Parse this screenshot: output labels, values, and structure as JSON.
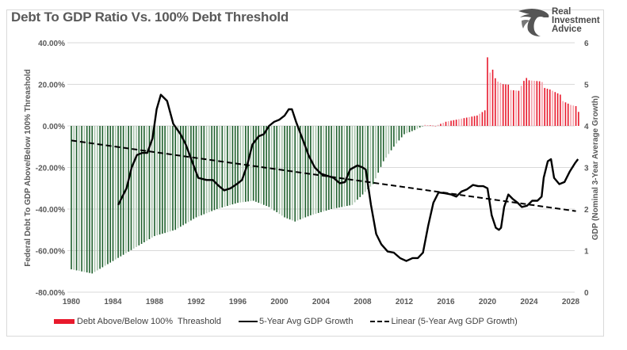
{
  "header": {
    "title": "Debt To GDP Ratio Vs. 100% Debt Threshold",
    "logo_lines": [
      "Real",
      "Investment",
      "Advice"
    ]
  },
  "colors": {
    "above": "#e8192c",
    "above_light": "#f4a1aa",
    "below": "#1e5f2c",
    "below_light": "#a9c4ad",
    "line": "#000000",
    "grid": "#d9d9d9",
    "text": "#595959"
  },
  "chart_data": {
    "type": "bar+line",
    "title": "Debt To GDP Ratio Vs. 100% Debt Threshold",
    "xlabel": "",
    "ylabel": "Federal Debt To GDP Above/Below 100% Threashold",
    "y2label": "GDP (Nominal 3-Year Average Growth)",
    "xlim": [
      1980,
      2028
    ],
    "x_ticks": [
      "1980",
      "1984",
      "1988",
      "1992",
      "1996",
      "2000",
      "2004",
      "2008",
      "2012",
      "2016",
      "2020",
      "2024",
      "2028"
    ],
    "ylim": [
      -80,
      40
    ],
    "y_ticks": [
      "40.00%",
      "20.00%",
      "0.00%",
      "-20.00%",
      "-40.00%",
      "-60.00%",
      "-80.00%"
    ],
    "y2lim": [
      0,
      6
    ],
    "y2_ticks": [
      "6",
      "5",
      "4",
      "3",
      "2",
      "1",
      "0"
    ],
    "grid": true,
    "legend_position": "bottom",
    "legend": [
      {
        "name": "Debt Above/Below 100%  Threashold",
        "style": "bar"
      },
      {
        "name": "5-Year Avg GDP Growth",
        "style": "solid"
      },
      {
        "name": "Linear (5-Year Avg GDP Growth)",
        "style": "dashed"
      }
    ],
    "bars": {
      "name": "Debt Above/Below 100%  Threashold",
      "axis": "left",
      "frequency": "quarterly",
      "anchors_year": [
        1980,
        1981,
        1982,
        1983,
        1984,
        1986,
        1988,
        1990,
        1992,
        1994,
        1996,
        1997.5,
        1999,
        2000.5,
        2001.5,
        2003,
        2005,
        2007,
        2008,
        2009,
        2010,
        2011,
        2012,
        2013,
        2014,
        2015,
        2016,
        2017,
        2018,
        2019,
        2019.9,
        2020.0,
        2020.25,
        2020.5,
        2021,
        2021.5,
        2022,
        2022.5,
        2023,
        2023.5,
        2024,
        2025,
        2026,
        2027,
        2028,
        2028.75
      ],
      "anchors_value": [
        -69,
        -70,
        -71,
        -68,
        -65,
        -59,
        -53,
        -50,
        -44,
        -40,
        -37,
        -36,
        -39,
        -44,
        -46,
        -43,
        -40,
        -38,
        -33,
        -28,
        -17,
        -10,
        -4,
        -2,
        0.5,
        0,
        2,
        3,
        4,
        5,
        8,
        33,
        25,
        26,
        22,
        20,
        19,
        18,
        17,
        21,
        23,
        21,
        18,
        14,
        10,
        8
      ]
    },
    "series": [
      {
        "name": "5-Year Avg GDP Growth",
        "axis": "right",
        "x": [
          1984.5,
          1985.3,
          1985.8,
          1986.3,
          1986.8,
          1987.3,
          1987.8,
          1988.2,
          1988.6,
          1989.2,
          1989.8,
          1990.5,
          1991.0,
          1991.6,
          1992.2,
          1993.0,
          1993.6,
          1994.2,
          1994.7,
          1995.3,
          1995.9,
          1996.4,
          1996.9,
          1997.4,
          1998.0,
          1998.5,
          1999.0,
          1999.5,
          2000.0,
          2000.5,
          2000.9,
          2001.2,
          2001.6,
          2002.2,
          2002.8,
          2003.4,
          2004.0,
          2004.6,
          2005.2,
          2005.8,
          2006.3,
          2006.8,
          2007.5,
          2008.0,
          2008.3,
          2008.8,
          2009.3,
          2009.8,
          2010.4,
          2011.0,
          2011.6,
          2012.2,
          2012.8,
          2013.3,
          2013.8,
          2014.3,
          2014.8,
          2015.3,
          2015.9,
          2016.5,
          2017.0,
          2017.5,
          2018.0,
          2018.6,
          2019.1,
          2019.6,
          2020.0,
          2020.4,
          2020.8,
          2021.1,
          2021.3,
          2021.6,
          2022.0,
          2022.4,
          2022.9,
          2023.3,
          2023.8,
          2024.3,
          2024.8,
          2025.2,
          2025.4,
          2025.8,
          2026.1,
          2026.4,
          2026.9,
          2027.4,
          2027.9,
          2028.4,
          2028.7
        ],
        "y": [
          2.1,
          2.5,
          3.0,
          3.3,
          3.35,
          3.35,
          3.7,
          4.4,
          4.75,
          4.6,
          4.05,
          3.8,
          3.55,
          3.15,
          2.75,
          2.7,
          2.7,
          2.55,
          2.45,
          2.5,
          2.6,
          2.7,
          3.05,
          3.55,
          3.75,
          3.8,
          4.0,
          4.1,
          4.15,
          4.25,
          4.4,
          4.4,
          4.1,
          3.7,
          3.3,
          3.0,
          2.85,
          2.8,
          2.75,
          2.62,
          2.65,
          2.95,
          3.05,
          3.0,
          2.95,
          2.1,
          1.4,
          1.15,
          0.98,
          0.95,
          0.82,
          0.75,
          0.82,
          0.82,
          0.95,
          1.6,
          2.15,
          2.4,
          2.38,
          2.35,
          2.3,
          2.42,
          2.47,
          2.58,
          2.55,
          2.55,
          2.5,
          1.85,
          1.55,
          1.5,
          1.55,
          2.05,
          2.35,
          2.25,
          2.15,
          2.05,
          2.08,
          2.2,
          2.2,
          2.3,
          2.75,
          3.15,
          3.2,
          2.75,
          2.6,
          2.65,
          2.9,
          3.1,
          3.2
        ]
      },
      {
        "name": "Linear (5-Year Avg GDP Growth)",
        "axis": "right",
        "x": [
          1980,
          2028.5
        ],
        "y": [
          3.65,
          1.95
        ]
      }
    ]
  }
}
